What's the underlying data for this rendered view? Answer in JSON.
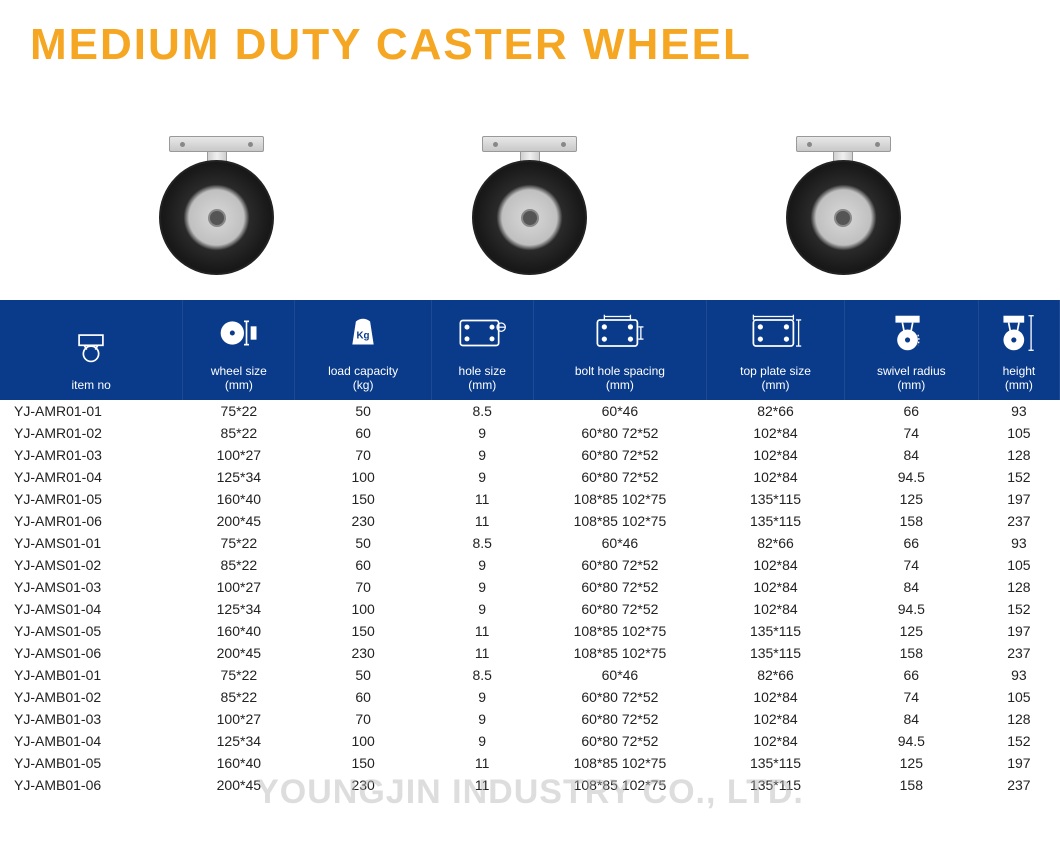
{
  "title": "MEDIUM DUTY CASTER WHEEL",
  "watermark": "YOUNGJIN INDUSTRY CO., LTD.",
  "colors": {
    "title_color": "#f5a623",
    "header_bg": "#0a3b8a",
    "header_text": "#ffffff",
    "body_text": "#222222",
    "background": "#ffffff"
  },
  "table": {
    "columns": [
      {
        "label": "item no",
        "icon": "item-no-icon"
      },
      {
        "label": "wheel size\n(mm)",
        "icon": "wheel-size-icon"
      },
      {
        "label": "load capacity\n(kg)",
        "icon": "load-capacity-icon"
      },
      {
        "label": "hole size\n(mm)",
        "icon": "hole-size-icon"
      },
      {
        "label": "bolt hole spacing\n(mm)",
        "icon": "bolt-spacing-icon"
      },
      {
        "label": "top plate size\n(mm)",
        "icon": "top-plate-icon"
      },
      {
        "label": "swivel radius\n(mm)",
        "icon": "swivel-radius-icon"
      },
      {
        "label": "height\n(mm)",
        "icon": "height-icon"
      }
    ],
    "rows": [
      [
        "YJ-AMR01-01",
        "75*22",
        "50",
        "8.5",
        "60*46",
        "82*66",
        "66",
        "93"
      ],
      [
        "YJ-AMR01-02",
        "85*22",
        "60",
        "9",
        "60*80  72*52",
        "102*84",
        "74",
        "105"
      ],
      [
        "YJ-AMR01-03",
        "100*27",
        "70",
        "9",
        "60*80  72*52",
        "102*84",
        "84",
        "128"
      ],
      [
        "YJ-AMR01-04",
        "125*34",
        "100",
        "9",
        "60*80  72*52",
        "102*84",
        "94.5",
        "152"
      ],
      [
        "YJ-AMR01-05",
        "160*40",
        "150",
        "11",
        "108*85 102*75",
        "135*115",
        "125",
        "197"
      ],
      [
        "YJ-AMR01-06",
        "200*45",
        "230",
        "11",
        "108*85 102*75",
        "135*115",
        "158",
        "237"
      ],
      [
        "YJ-AMS01-01",
        "75*22",
        "50",
        "8.5",
        "60*46",
        "82*66",
        "66",
        "93"
      ],
      [
        "YJ-AMS01-02",
        "85*22",
        "60",
        "9",
        "60*80  72*52",
        "102*84",
        "74",
        "105"
      ],
      [
        "YJ-AMS01-03",
        "100*27",
        "70",
        "9",
        "60*80  72*52",
        "102*84",
        "84",
        "128"
      ],
      [
        "YJ-AMS01-04",
        "125*34",
        "100",
        "9",
        "60*80  72*52",
        "102*84",
        "94.5",
        "152"
      ],
      [
        "YJ-AMS01-05",
        "160*40",
        "150",
        "11",
        "108*85 102*75",
        "135*115",
        "125",
        "197"
      ],
      [
        "YJ-AMS01-06",
        "200*45",
        "230",
        "11",
        "108*85 102*75",
        "135*115",
        "158",
        "237"
      ],
      [
        "YJ-AMB01-01",
        "75*22",
        "50",
        "8.5",
        "60*46",
        "82*66",
        "66",
        "93"
      ],
      [
        "YJ-AMB01-02",
        "85*22",
        "60",
        "9",
        "60*80  72*52",
        "102*84",
        "74",
        "105"
      ],
      [
        "YJ-AMB01-03",
        "100*27",
        "70",
        "9",
        "60*80  72*52",
        "102*84",
        "84",
        "128"
      ],
      [
        "YJ-AMB01-04",
        "125*34",
        "100",
        "9",
        "60*80  72*52",
        "102*84",
        "94.5",
        "152"
      ],
      [
        "YJ-AMB01-05",
        "160*40",
        "150",
        "11",
        "108*85 102*75",
        "135*115",
        "125",
        "197"
      ],
      [
        "YJ-AMB01-06",
        "200*45",
        "230",
        "11",
        "108*85 102*75",
        "135*115",
        "158",
        "237"
      ]
    ]
  },
  "product_images": [
    {
      "type": "fixed-caster"
    },
    {
      "type": "swivel-caster"
    },
    {
      "type": "swivel-brake-caster"
    }
  ]
}
